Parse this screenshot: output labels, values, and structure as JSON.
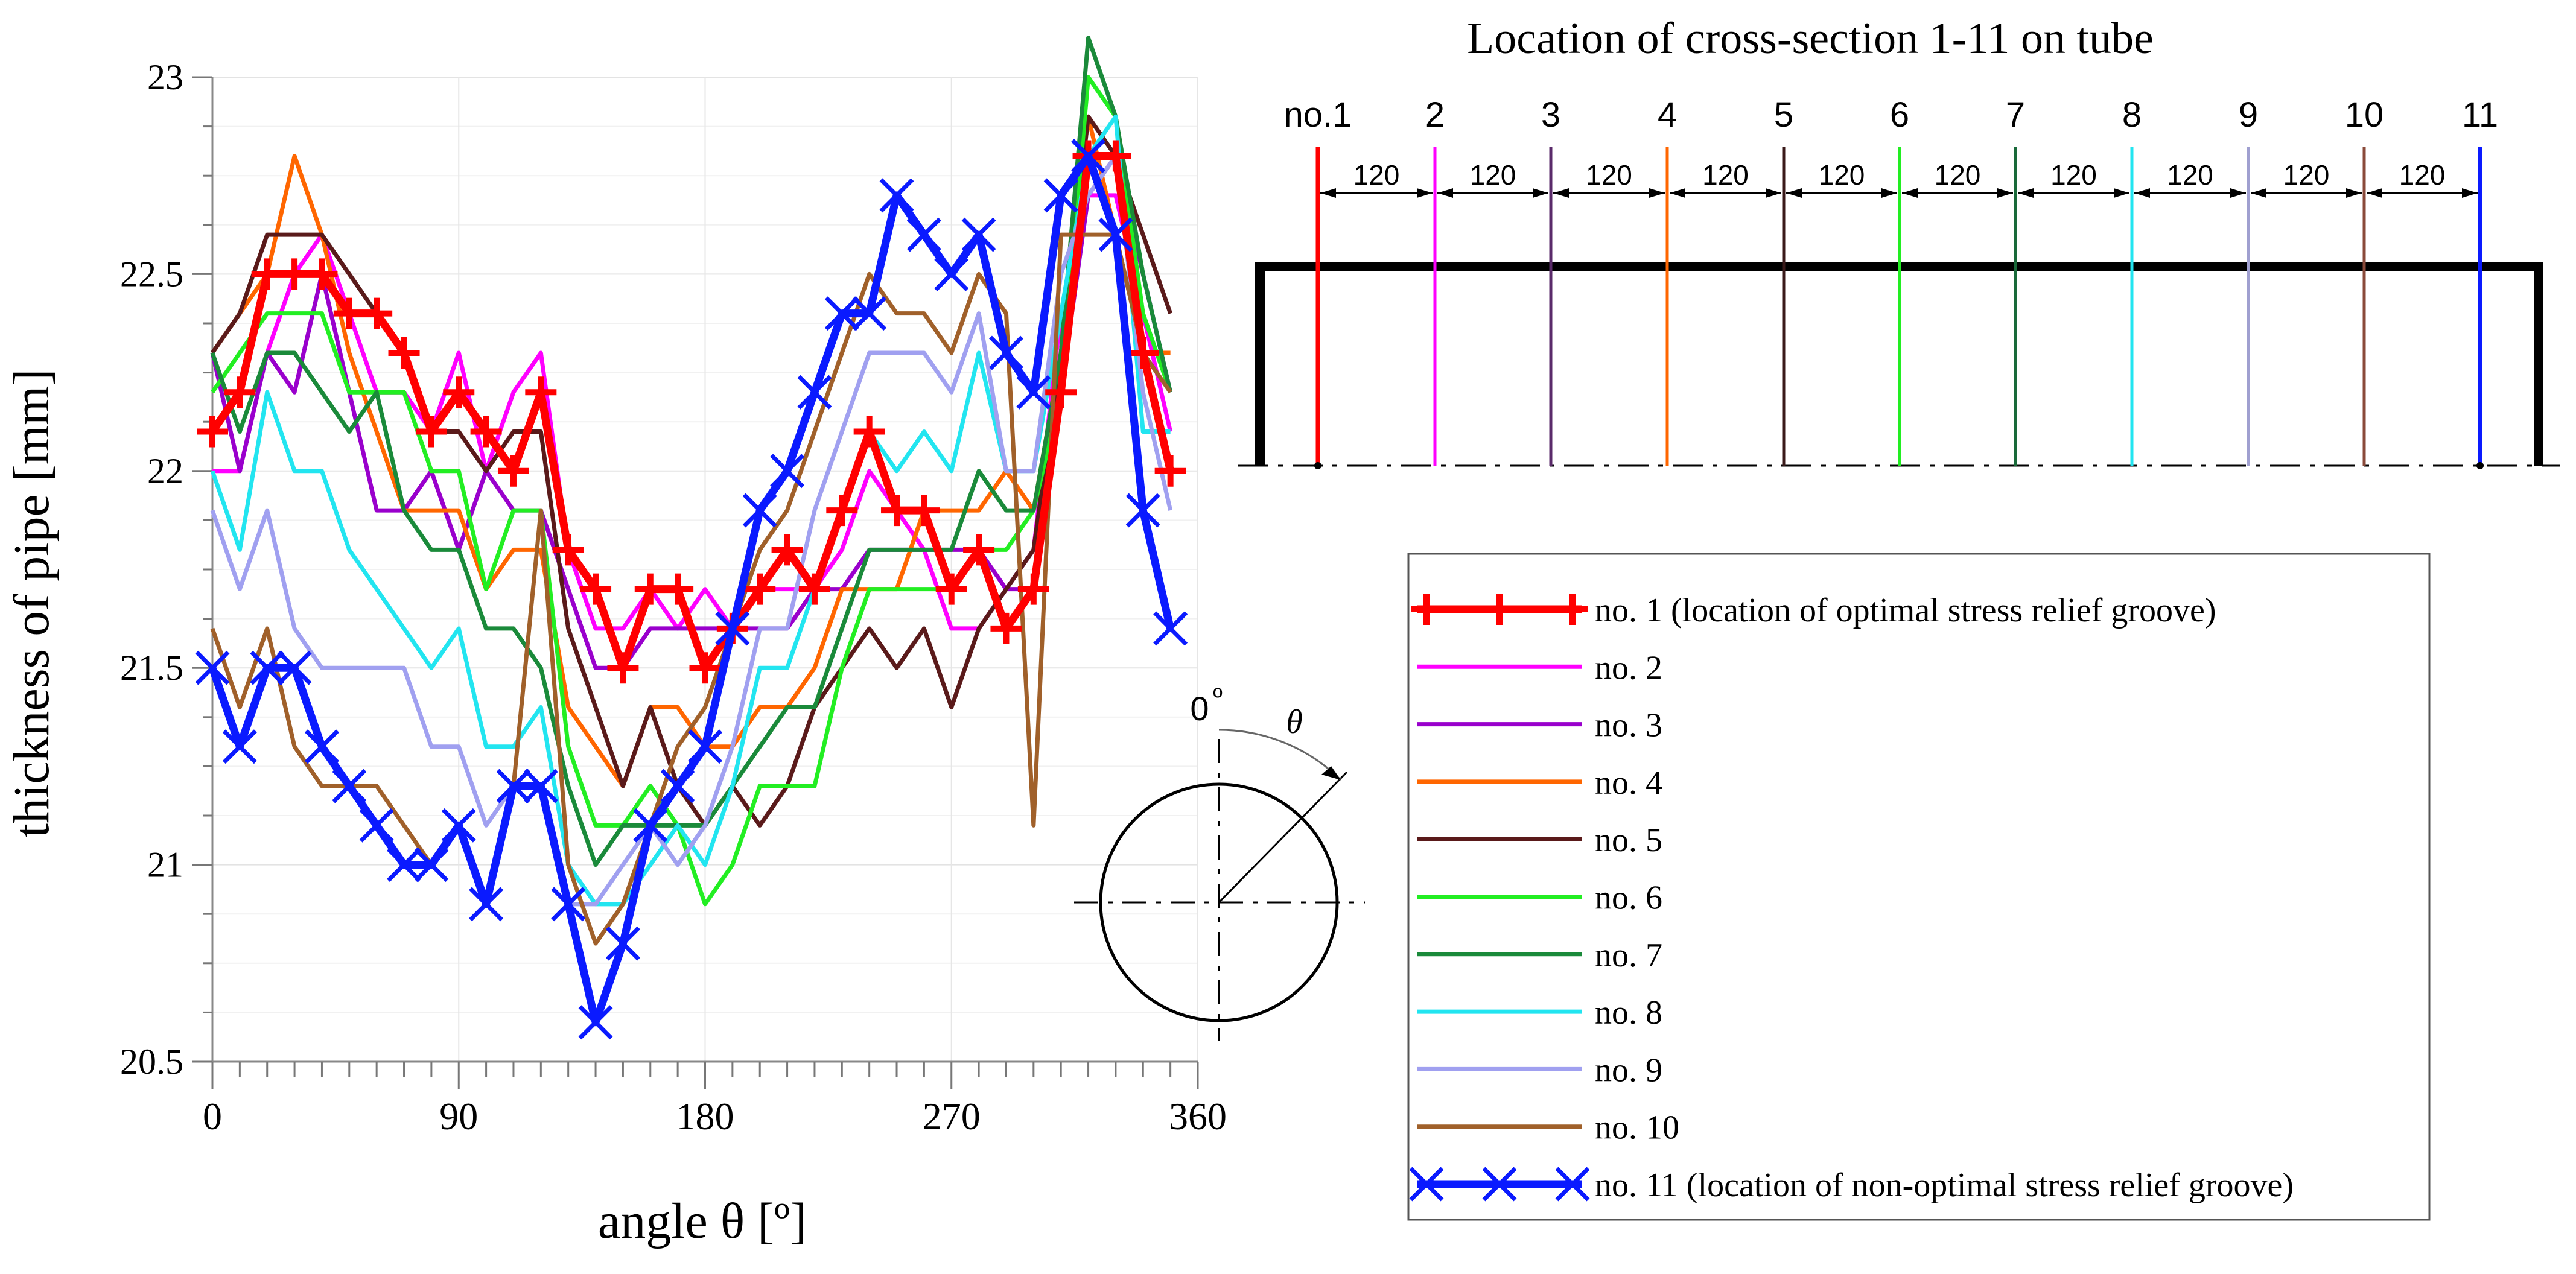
{
  "chart_data": {
    "type": "line",
    "xlabel": "angle θ [º]",
    "ylabel": "thickness of pipe  [mm]",
    "xlim": [
      0,
      360
    ],
    "ylim": [
      20.5,
      23
    ],
    "xticks": [
      0,
      90,
      180,
      270,
      360
    ],
    "xtick_labels": [
      "0",
      "90",
      "180",
      "270",
      "360"
    ],
    "yticks": [
      20.5,
      21,
      21.5,
      22,
      22.5,
      23
    ],
    "ytick_labels": [
      "20.5",
      "21",
      "21.5",
      "22",
      "22.5",
      "23"
    ],
    "grid": true,
    "legend_position": "bottom-right",
    "x": [
      0,
      10,
      20,
      30,
      40,
      50,
      60,
      70,
      80,
      90,
      100,
      110,
      120,
      130,
      140,
      150,
      160,
      170,
      180,
      190,
      200,
      210,
      220,
      230,
      240,
      250,
      260,
      270,
      280,
      290,
      300,
      310,
      320,
      330,
      340,
      350
    ],
    "series": [
      {
        "name": "no. 1 (location of optimal stress relief groove)",
        "color": "#ff0000",
        "marker": "plus",
        "bold": true,
        "values": [
          22.1,
          22.2,
          22.5,
          22.5,
          22.5,
          22.4,
          22.4,
          22.3,
          22.1,
          22.2,
          22.1,
          22.0,
          22.2,
          21.8,
          21.7,
          21.5,
          21.7,
          21.7,
          21.5,
          21.6,
          21.7,
          21.8,
          21.7,
          21.9,
          22.1,
          21.9,
          21.9,
          21.7,
          21.8,
          21.6,
          21.7,
          22.2,
          22.8,
          22.8,
          22.3,
          22.0
        ]
      },
      {
        "name": "no. 2",
        "color": "#ff00ff",
        "values": [
          22.0,
          22.0,
          22.3,
          22.5,
          22.6,
          22.4,
          22.2,
          22.2,
          22.1,
          22.3,
          22.0,
          22.2,
          22.3,
          21.8,
          21.6,
          21.6,
          21.7,
          21.6,
          21.7,
          21.6,
          21.7,
          21.7,
          21.7,
          21.8,
          22.0,
          21.9,
          21.8,
          21.6,
          21.6,
          21.7,
          21.8,
          22.4,
          22.7,
          22.7,
          22.4,
          22.1
        ]
      },
      {
        "name": "no. 3",
        "color": "#9900cc",
        "values": [
          22.3,
          22.0,
          22.3,
          22.2,
          22.5,
          22.2,
          21.9,
          21.9,
          22.0,
          21.8,
          22.0,
          21.9,
          21.9,
          21.7,
          21.5,
          21.5,
          21.6,
          21.6,
          21.6,
          21.6,
          21.6,
          21.6,
          21.7,
          21.7,
          21.8,
          21.8,
          21.8,
          21.8,
          21.8,
          21.7,
          21.7,
          22.2,
          22.7,
          22.8,
          22.5,
          22.2
        ]
      },
      {
        "name": "no. 4",
        "color": "#ff6600",
        "values": [
          22.3,
          22.4,
          22.5,
          22.8,
          22.6,
          22.3,
          22.1,
          21.9,
          21.9,
          21.9,
          21.7,
          21.8,
          21.8,
          21.4,
          21.3,
          21.2,
          21.4,
          21.4,
          21.3,
          21.3,
          21.4,
          21.4,
          21.5,
          21.7,
          21.7,
          21.7,
          21.9,
          21.9,
          21.9,
          22.0,
          21.9,
          22.3,
          22.9,
          22.6,
          22.3,
          22.3
        ]
      },
      {
        "name": "no. 5",
        "color": "#5a1a1a",
        "values": [
          22.3,
          22.4,
          22.6,
          22.6,
          22.6,
          22.5,
          22.4,
          22.3,
          22.1,
          22.1,
          22.0,
          22.1,
          22.1,
          21.6,
          21.4,
          21.2,
          21.4,
          21.2,
          21.1,
          21.2,
          21.1,
          21.2,
          21.4,
          21.5,
          21.6,
          21.5,
          21.6,
          21.4,
          21.6,
          21.7,
          21.8,
          22.3,
          22.9,
          22.8,
          22.6,
          22.4
        ]
      },
      {
        "name": "no. 6",
        "color": "#22ee22",
        "values": [
          22.2,
          22.3,
          22.4,
          22.4,
          22.4,
          22.2,
          22.2,
          22.2,
          22.0,
          22.0,
          21.7,
          21.9,
          21.9,
          21.3,
          21.1,
          21.1,
          21.2,
          21.1,
          20.9,
          21.0,
          21.2,
          21.2,
          21.2,
          21.5,
          21.7,
          21.7,
          21.7,
          21.7,
          21.8,
          21.8,
          21.9,
          22.2,
          23.0,
          22.9,
          22.4,
          22.2
        ]
      },
      {
        "name": "no. 7",
        "color": "#1a8a3a",
        "values": [
          22.3,
          22.1,
          22.3,
          22.3,
          22.2,
          22.1,
          22.2,
          21.9,
          21.8,
          21.8,
          21.6,
          21.6,
          21.5,
          21.2,
          21.0,
          21.1,
          21.1,
          21.1,
          21.1,
          21.2,
          21.3,
          21.4,
          21.4,
          21.6,
          21.8,
          21.8,
          21.8,
          21.8,
          22.0,
          21.9,
          21.9,
          22.3,
          23.1,
          22.9,
          22.5,
          22.2
        ]
      },
      {
        "name": "no. 8",
        "color": "#22e5f0",
        "values": [
          22.0,
          21.8,
          22.2,
          22.0,
          22.0,
          21.8,
          21.7,
          21.6,
          21.5,
          21.6,
          21.3,
          21.3,
          21.4,
          21.0,
          20.9,
          20.9,
          21.0,
          21.1,
          21.0,
          21.2,
          21.5,
          21.5,
          21.7,
          21.9,
          22.1,
          22.0,
          22.1,
          22.0,
          22.3,
          22.0,
          22.0,
          22.4,
          22.8,
          22.9,
          22.1,
          22.1
        ]
      },
      {
        "name": "no. 9",
        "color": "#a0a0f0",
        "values": [
          21.9,
          21.7,
          21.9,
          21.6,
          21.5,
          21.5,
          21.5,
          21.5,
          21.3,
          21.3,
          21.1,
          21.2,
          21.2,
          20.9,
          20.9,
          21.0,
          21.1,
          21.0,
          21.1,
          21.3,
          21.6,
          21.6,
          21.9,
          22.1,
          22.3,
          22.3,
          22.3,
          22.2,
          22.4,
          22.0,
          22.0,
          22.5,
          22.7,
          22.8,
          22.2,
          21.9
        ]
      },
      {
        "name": "no. 10",
        "color": "#a0602a",
        "values": [
          21.6,
          21.4,
          21.6,
          21.3,
          21.2,
          21.2,
          21.2,
          21.1,
          21.0,
          21.1,
          20.9,
          21.2,
          21.9,
          21.0,
          20.8,
          20.9,
          21.1,
          21.3,
          21.4,
          21.6,
          21.8,
          21.9,
          22.1,
          22.3,
          22.5,
          22.4,
          22.4,
          22.3,
          22.5,
          22.4,
          21.1,
          22.6,
          22.6,
          22.6,
          22.3,
          22.2
        ]
      },
      {
        "name": "no. 11 (location of non-optimal stress relief groove)",
        "color": "#0a1aff",
        "marker": "x",
        "bold": true,
        "values": [
          21.5,
          21.3,
          21.5,
          21.5,
          21.3,
          21.2,
          21.1,
          21.0,
          21.0,
          21.1,
          20.9,
          21.2,
          21.2,
          20.9,
          20.6,
          20.8,
          21.1,
          21.2,
          21.3,
          21.6,
          21.9,
          22.0,
          22.2,
          22.4,
          22.4,
          22.7,
          22.6,
          22.5,
          22.6,
          22.3,
          22.2,
          22.7,
          22.8,
          22.6,
          21.9,
          21.6
        ]
      }
    ]
  },
  "diagram": {
    "title": "Location of cross-section 1-11 on tube",
    "sections": [
      {
        "label": "no.1",
        "color": "#ff0000"
      },
      {
        "label": "2",
        "color": "#ff00ff"
      },
      {
        "label": "3",
        "color": "#5a2a6a"
      },
      {
        "label": "4",
        "color": "#ff6600"
      },
      {
        "label": "5",
        "color": "#3a1a1a"
      },
      {
        "label": "6",
        "color": "#22ee22"
      },
      {
        "label": "7",
        "color": "#1a6a3a"
      },
      {
        "label": "8",
        "color": "#22e5f0"
      },
      {
        "label": "9",
        "color": "#a0a0d0"
      },
      {
        "label": "10",
        "color": "#8a4a3a"
      },
      {
        "label": "11",
        "color": "#0a1aff"
      }
    ],
    "spacing_label": "120"
  },
  "angle_sketch": {
    "zero_label": "0",
    "degree_mark": "º",
    "theta_label": "θ"
  }
}
